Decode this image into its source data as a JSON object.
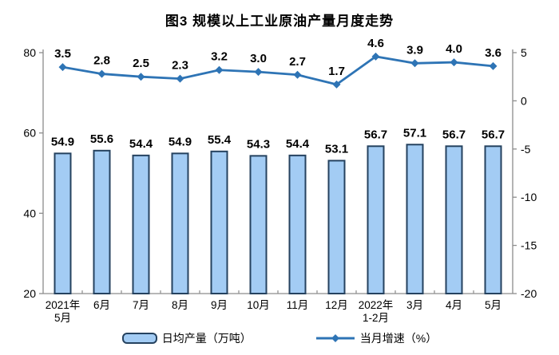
{
  "chart_data": {
    "type": "bar+line",
    "title": "图3 规模以上工业原油产量月度走势",
    "categories": [
      "2021年\n5月",
      "6月",
      "7月",
      "8月",
      "9月",
      "10月",
      "11月",
      "12月",
      "2022年\n1-2月",
      "3月",
      "4月",
      "5月"
    ],
    "series": [
      {
        "name": "日均产量（万吨）",
        "type": "bar",
        "axis": "left",
        "values": [
          54.9,
          55.6,
          54.4,
          54.9,
          55.4,
          54.3,
          54.4,
          53.1,
          56.7,
          57.1,
          56.7,
          56.7
        ]
      },
      {
        "name": "当月增速（%）",
        "type": "line",
        "axis": "right",
        "values": [
          3.5,
          2.8,
          2.5,
          2.3,
          3.2,
          3.0,
          2.7,
          1.7,
          4.6,
          3.9,
          4.0,
          3.6
        ]
      }
    ],
    "left_axis": {
      "min": 20,
      "max": 80,
      "ticks": [
        80,
        60,
        40,
        20
      ]
    },
    "right_axis": {
      "min": -20,
      "max": 5,
      "ticks": [
        5,
        0,
        -5,
        -10,
        -15,
        -20
      ]
    },
    "grid": false,
    "legend": {
      "position": "bottom",
      "items": [
        "日均产量（万吨）",
        "当月增速（%）"
      ]
    },
    "colors": {
      "bar_fill": "#A3CCF4",
      "bar_border": "#25425F",
      "line": "#2E74B5",
      "axis": "#8C8C8C",
      "text": "#000000",
      "background": "#FFFFFF"
    }
  }
}
